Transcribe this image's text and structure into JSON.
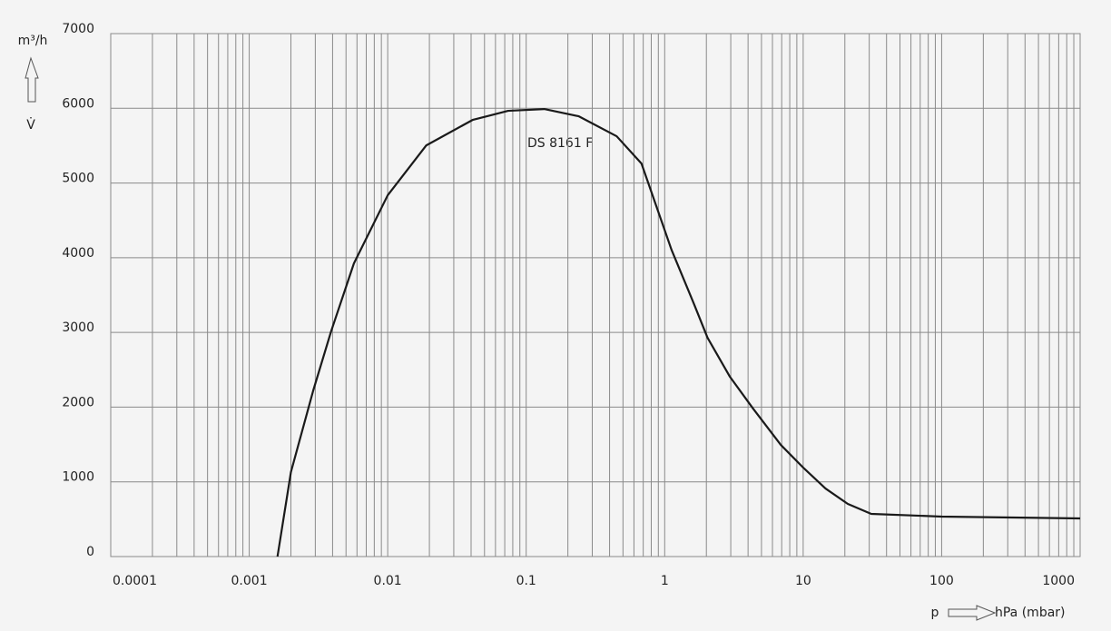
{
  "chart_data": {
    "type": "line",
    "y_unit": "m³/h",
    "y_symbol": "V̇",
    "x_symbol": "p",
    "x_unit": "hPa (mbar)",
    "annotation": "DS 8161 F",
    "x_scale": "log",
    "grid": true,
    "minor_grid": true,
    "xlim": [
      0.0001,
      1000
    ],
    "xticks": [
      0.0001,
      0.001,
      0.01,
      0.1,
      1,
      10,
      100,
      1000
    ],
    "ylim": [
      0,
      7000
    ],
    "yticks": [
      0,
      1000,
      2000,
      3000,
      4000,
      5000,
      6000,
      7000
    ],
    "series": [
      {
        "name": "DS 8161 F",
        "color": "#1a1a1a",
        "x": [
          0.0016,
          0.002,
          0.0029,
          0.0039,
          0.0057,
          0.01,
          0.019,
          0.041,
          0.074,
          0.135,
          0.24,
          0.45,
          0.68,
          1.12,
          1.63,
          2.04,
          2.96,
          4.35,
          6.9,
          10,
          14.5,
          21,
          31,
          100,
          1000
        ],
        "values": [
          0,
          1130,
          2224,
          3013,
          3924,
          4836,
          5504,
          5844,
          5966,
          5990,
          5893,
          5626,
          5261,
          4107,
          3378,
          2928,
          2406,
          1980,
          1494,
          1191,
          911,
          705,
          571,
          535,
          510
        ]
      }
    ]
  }
}
